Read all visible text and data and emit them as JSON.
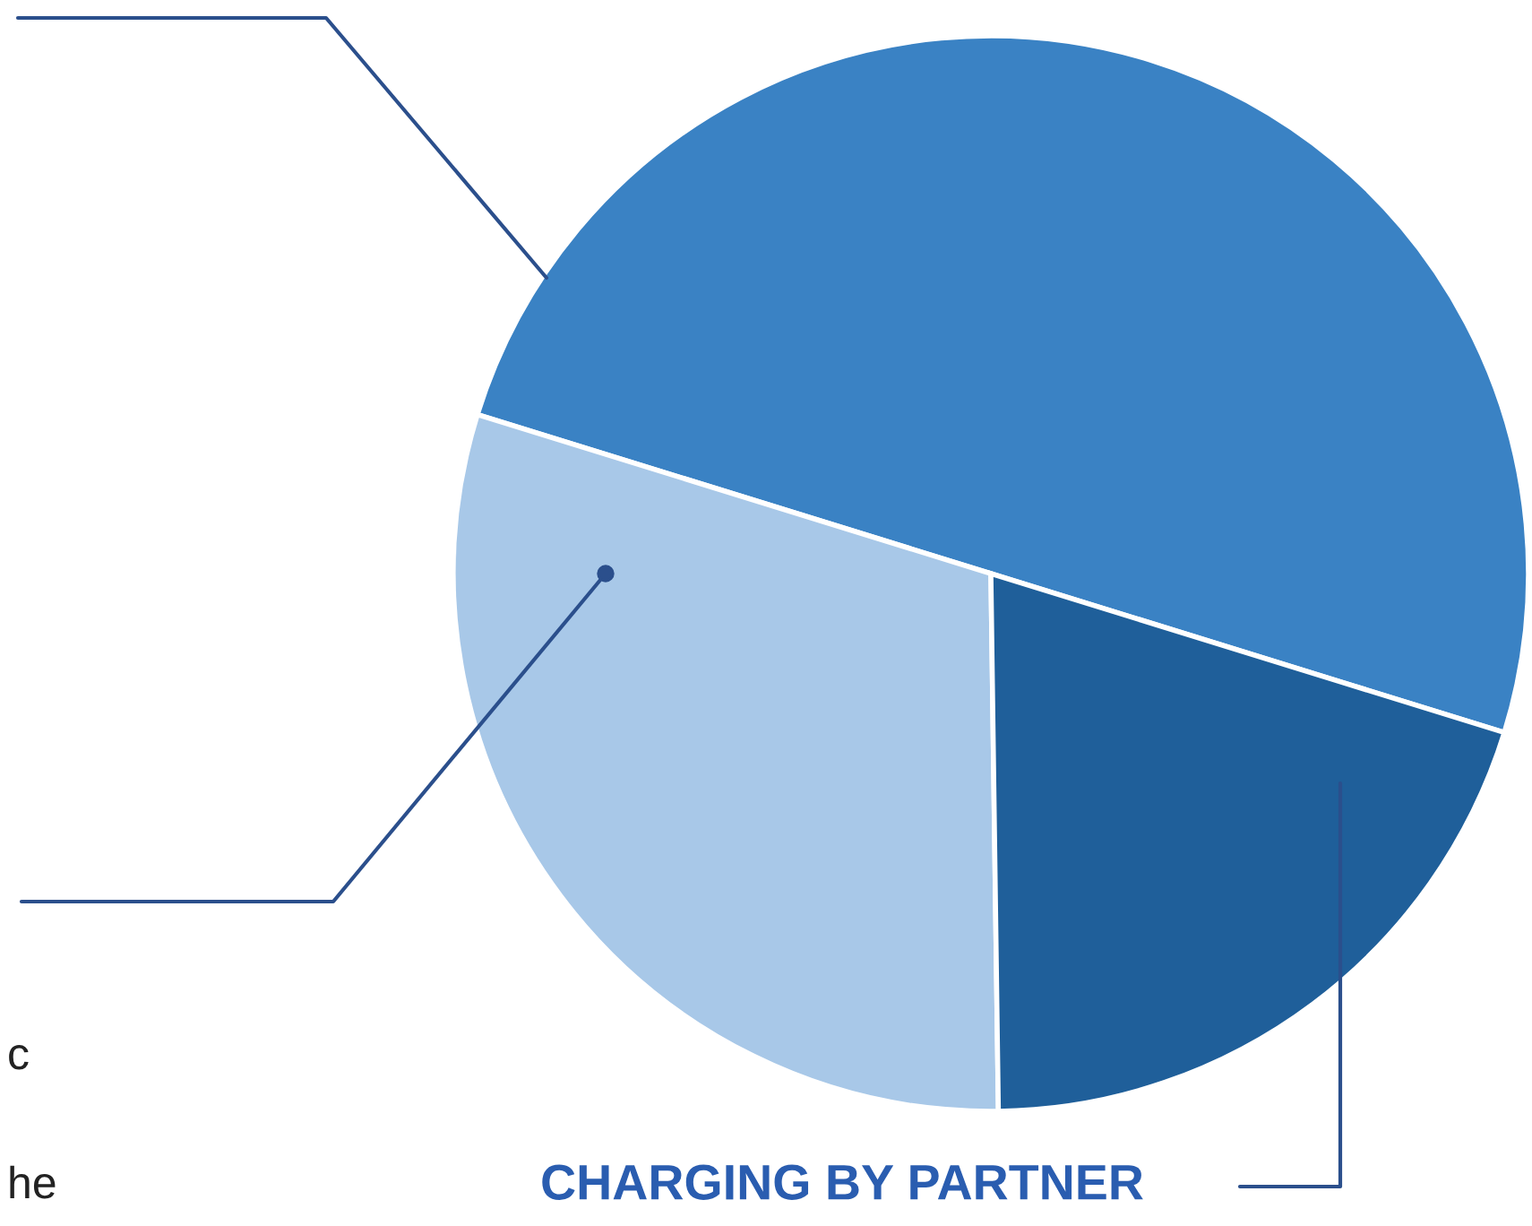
{
  "chart_data": {
    "type": "pie",
    "categories": [
      null,
      null,
      "CHARGING BY PARTNER"
    ],
    "values": [
      50,
      30,
      20
    ],
    "colors": [
      "#3a82c4",
      "#a8c8e8",
      "#1f5f9a"
    ],
    "annotations": [
      "c",
      "he"
    ]
  }
}
